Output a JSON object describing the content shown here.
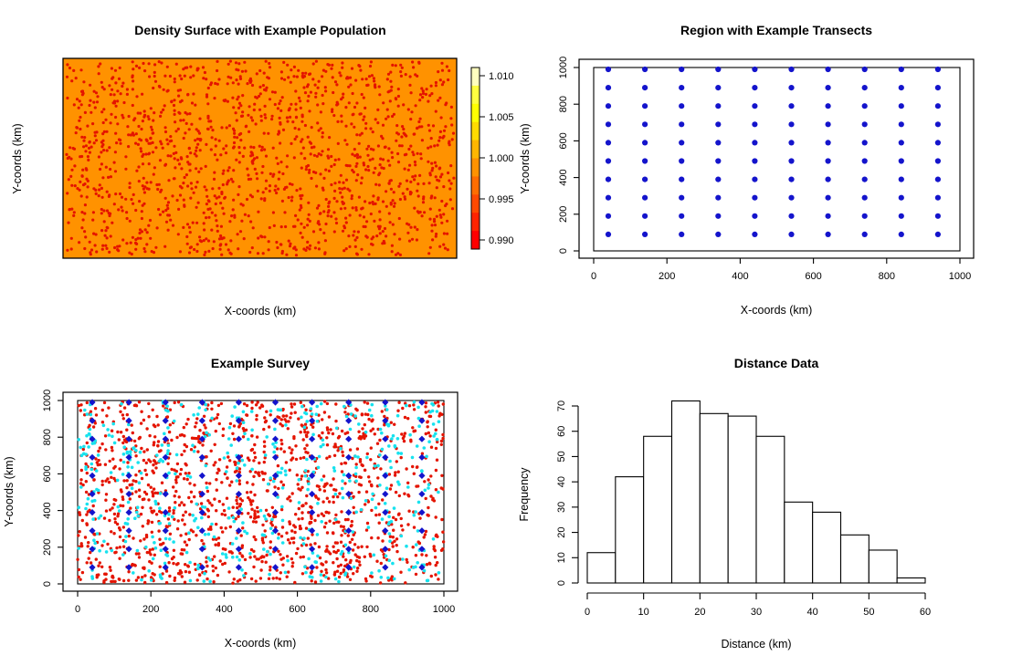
{
  "app": {
    "background": "#FFFFFF",
    "figure": "2x2 R plot panels"
  },
  "colors": {
    "axis": "#000000",
    "surface_orange": "#FF9200",
    "population_red": "#E41400",
    "transect_blue": "#1414CC",
    "detection_cyan": "#17E2EE",
    "bar_fill": "#FFFFFF"
  },
  "chart_data": [
    {
      "type": "scatter",
      "panel": "top-left",
      "title": "Density Surface with Example Population",
      "xlabel": "X-coords (km)",
      "ylabel": "Y-coords (km)",
      "axes_ticks_shown": false,
      "region_km": {
        "x": [
          0,
          1000
        ],
        "y": [
          0,
          1000
        ]
      },
      "surface": {
        "constant_density": 1.0,
        "fill_color": "#FF9200",
        "border_color": "#000000"
      },
      "population_points": {
        "n": 1500,
        "distribution": "uniform-random",
        "color": "#E41400",
        "seed": 101
      },
      "colorbar": {
        "tick_labels": [
          "1.010",
          "1.005",
          "1.000",
          "0.995",
          "0.990"
        ],
        "band_colors_top_to_bottom": [
          "#FFFFBF",
          "#FFFF40",
          "#FFFF00",
          "#FFDB00",
          "#FFB600",
          "#FF9200",
          "#FF6D00",
          "#FF4900",
          "#FF2400",
          "#FF0000"
        ],
        "border_color": "#000000"
      }
    },
    {
      "type": "scatter",
      "panel": "top-right",
      "title": "Region with Example Transects",
      "xlabel": "X-coords (km)",
      "ylabel": "Y-coords (km)",
      "x_ticks": [
        0,
        200,
        400,
        600,
        800,
        1000
      ],
      "y_ticks": [
        0,
        200,
        400,
        600,
        800,
        1000
      ],
      "xlim_km": [
        -40,
        1040
      ],
      "ylim_km": [
        -40,
        1040
      ],
      "region_km": {
        "x": [
          0,
          1000
        ],
        "y": [
          0,
          1000
        ]
      },
      "transect_grid": {
        "x_first_km": 40,
        "y_first_km": 90,
        "spacing_km": 100,
        "columns": 10,
        "rows": 10,
        "marker": "filled-circle",
        "point_color": "#1414CC"
      }
    },
    {
      "type": "scatter",
      "panel": "bottom-left",
      "title": "Example Survey",
      "xlabel": "X-coords (km)",
      "ylabel": "Y-coords (km)",
      "x_ticks": [
        0,
        200,
        400,
        600,
        800,
        1000
      ],
      "y_ticks": [
        0,
        200,
        400,
        600,
        800,
        1000
      ],
      "xlim_km": [
        -40,
        1040
      ],
      "ylim_km": [
        -40,
        1040
      ],
      "region_km": {
        "x": [
          0,
          1000
        ],
        "y": [
          0,
          1000
        ]
      },
      "series": [
        {
          "name": "population",
          "marker": "filled-circle",
          "color": "#E41400",
          "n": 1400,
          "distribution": "uniform-random",
          "seed": 202
        },
        {
          "name": "detected-animals",
          "marker": "filled-circle",
          "color": "#17E2EE",
          "n": 470,
          "distribution": "clustered-near-transect-columns",
          "max_offset_km": 55,
          "seed": 303
        },
        {
          "name": "transect-points",
          "marker": "filled-diamond",
          "color": "#1414CC",
          "grid": {
            "x_first_km": 40,
            "y_first_km": 90,
            "spacing_km": 100,
            "columns": 10,
            "rows": 10
          }
        }
      ]
    },
    {
      "type": "bar",
      "panel": "bottom-right",
      "title": "Distance Data",
      "xlabel": "Distance (km)",
      "ylabel": "Frequency",
      "histogram": true,
      "bin_start_km": 0,
      "bin_width_km": 5,
      "counts": [
        12,
        42,
        58,
        72,
        67,
        66,
        58,
        32,
        28,
        19,
        13,
        2
      ],
      "x_ticks": [
        0,
        10,
        20,
        30,
        40,
        50,
        60
      ],
      "y_ticks": [
        0,
        10,
        20,
        30,
        40,
        50,
        60,
        70
      ],
      "xlim": [
        0,
        60
      ],
      "ylim": [
        0,
        72
      ],
      "bar_fill": "#FFFFFF",
      "bar_border": "#000000",
      "grid": "off",
      "legend": "none"
    }
  ]
}
